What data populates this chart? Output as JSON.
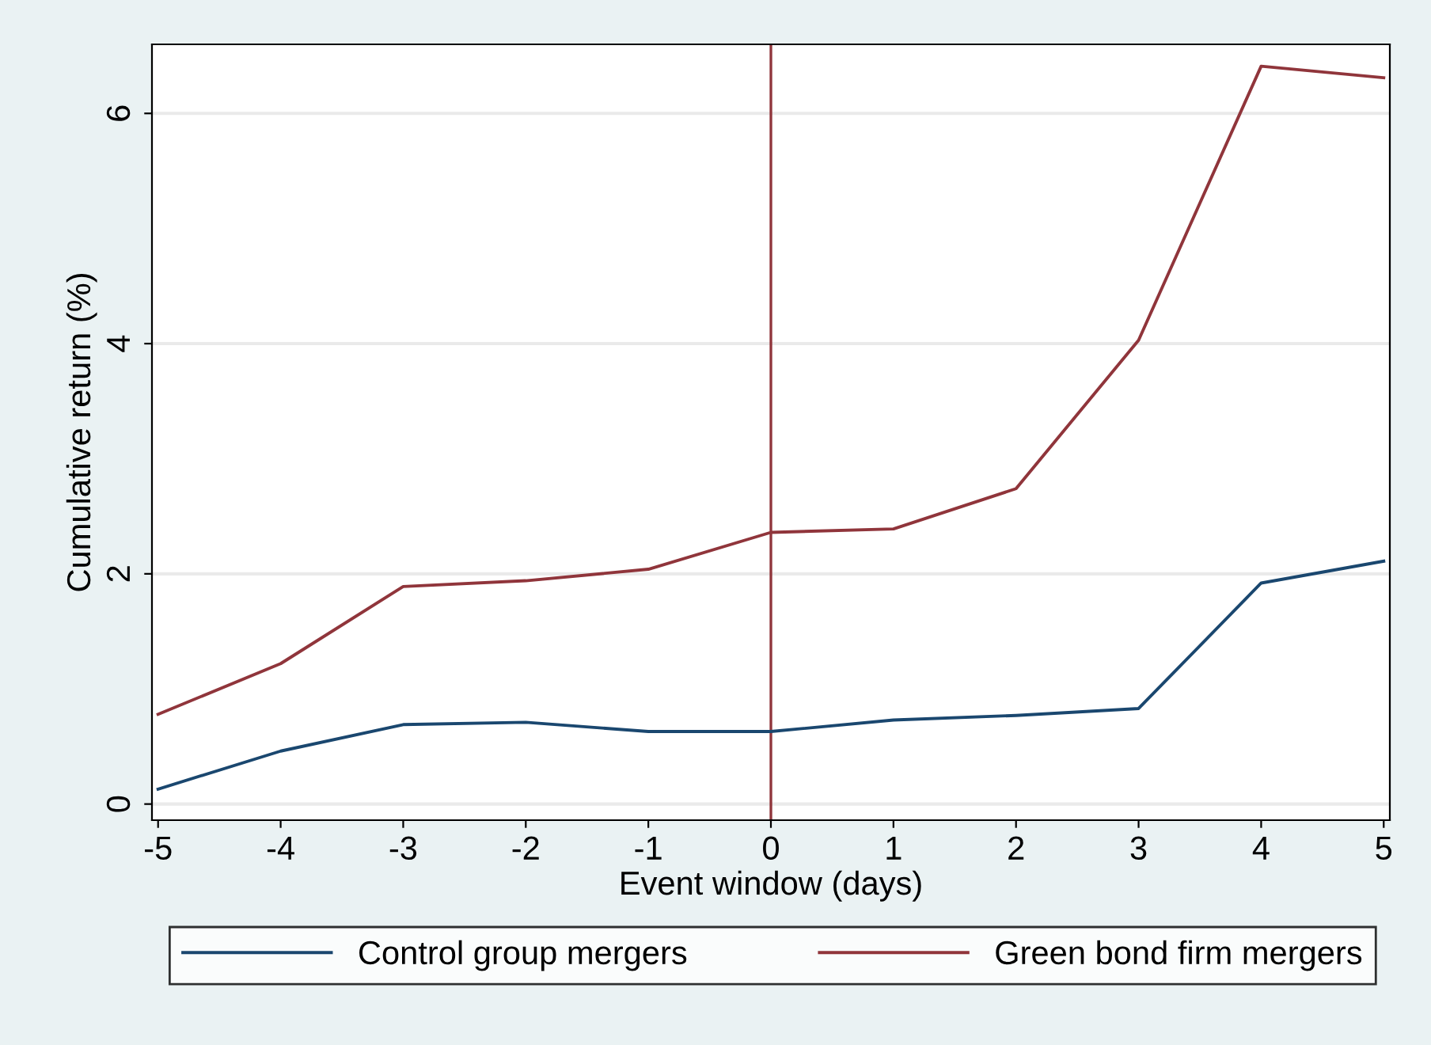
{
  "chart_data": {
    "type": "line",
    "xlabel": "Event window (days)",
    "ylabel": "Cumulative return (%)",
    "x": [
      -5,
      -4,
      -3,
      -2,
      -1,
      0,
      1,
      2,
      3,
      4,
      5
    ],
    "series": [
      {
        "name": "Control group mergers",
        "color": "#1a476f",
        "values": [
          0.13,
          0.46,
          0.69,
          0.71,
          0.63,
          0.63,
          0.73,
          0.77,
          0.83,
          1.92,
          2.11
        ]
      },
      {
        "name": "Green bond firm mergers",
        "color": "#90353b",
        "values": [
          0.78,
          1.22,
          1.89,
          1.94,
          2.04,
          2.36,
          2.39,
          2.74,
          4.03,
          6.41,
          6.31
        ]
      }
    ],
    "xlim": [
      -5.05,
      5.05
    ],
    "xticks": [
      -5,
      -4,
      -3,
      -2,
      -1,
      0,
      1,
      2,
      3,
      4,
      5
    ],
    "ylim": [
      -0.14,
      6.6
    ],
    "yticks": [
      0,
      2,
      4,
      6
    ],
    "ref_lines": [
      {
        "axis": "x",
        "value": 0,
        "color": "#90353b"
      }
    ],
    "grid": "y",
    "legend": "bottom",
    "marker": "none",
    "line_style": "solid"
  }
}
